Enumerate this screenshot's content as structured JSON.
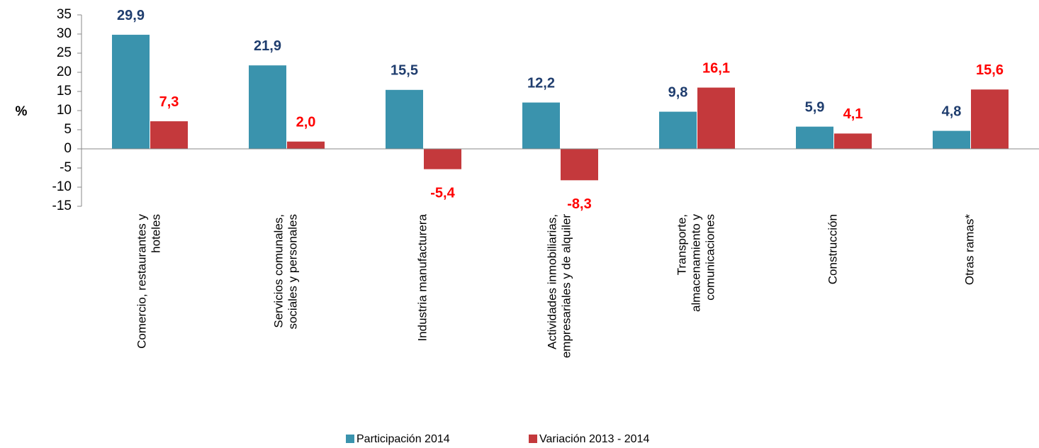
{
  "chart_data": {
    "type": "bar",
    "y_label": "%",
    "categories": [
      [
        "Comercio, restaurantes y",
        "hoteles"
      ],
      [
        "Servicios comunales,",
        "sociales y personales"
      ],
      [
        "Industria manufacturera"
      ],
      [
        "Actividades inmobiliarias,",
        "empresariales y de alquiler"
      ],
      [
        "Transporte,",
        "almacenamiento y",
        "comunicaciones"
      ],
      [
        "Construcción"
      ],
      [
        "Otras ramas*"
      ]
    ],
    "series": [
      {
        "name": "Participación 2014",
        "color": "#3a93ad",
        "label_color": "#1f3d6e",
        "values": [
          29.9,
          21.9,
          15.5,
          12.2,
          9.8,
          5.9,
          4.8
        ],
        "value_labels": [
          "29,9",
          "21,9",
          "15,5",
          "12,2",
          "9,8",
          "5,9",
          "4,8"
        ]
      },
      {
        "name": "Variación 2013 - 2014",
        "color": "#c4393c",
        "label_color": "#ff0000",
        "values": [
          7.3,
          2.0,
          -5.4,
          -8.3,
          16.1,
          4.1,
          15.6
        ],
        "value_labels": [
          "7,3",
          "2,0",
          "-5,4",
          "-8,3",
          "16,1",
          "4,1",
          "15,6"
        ]
      }
    ],
    "ylim": [
      -15,
      35
    ],
    "yticks": [
      35,
      30,
      25,
      20,
      15,
      10,
      5,
      0,
      -5,
      -10,
      -15
    ],
    "legend": "bottom"
  }
}
